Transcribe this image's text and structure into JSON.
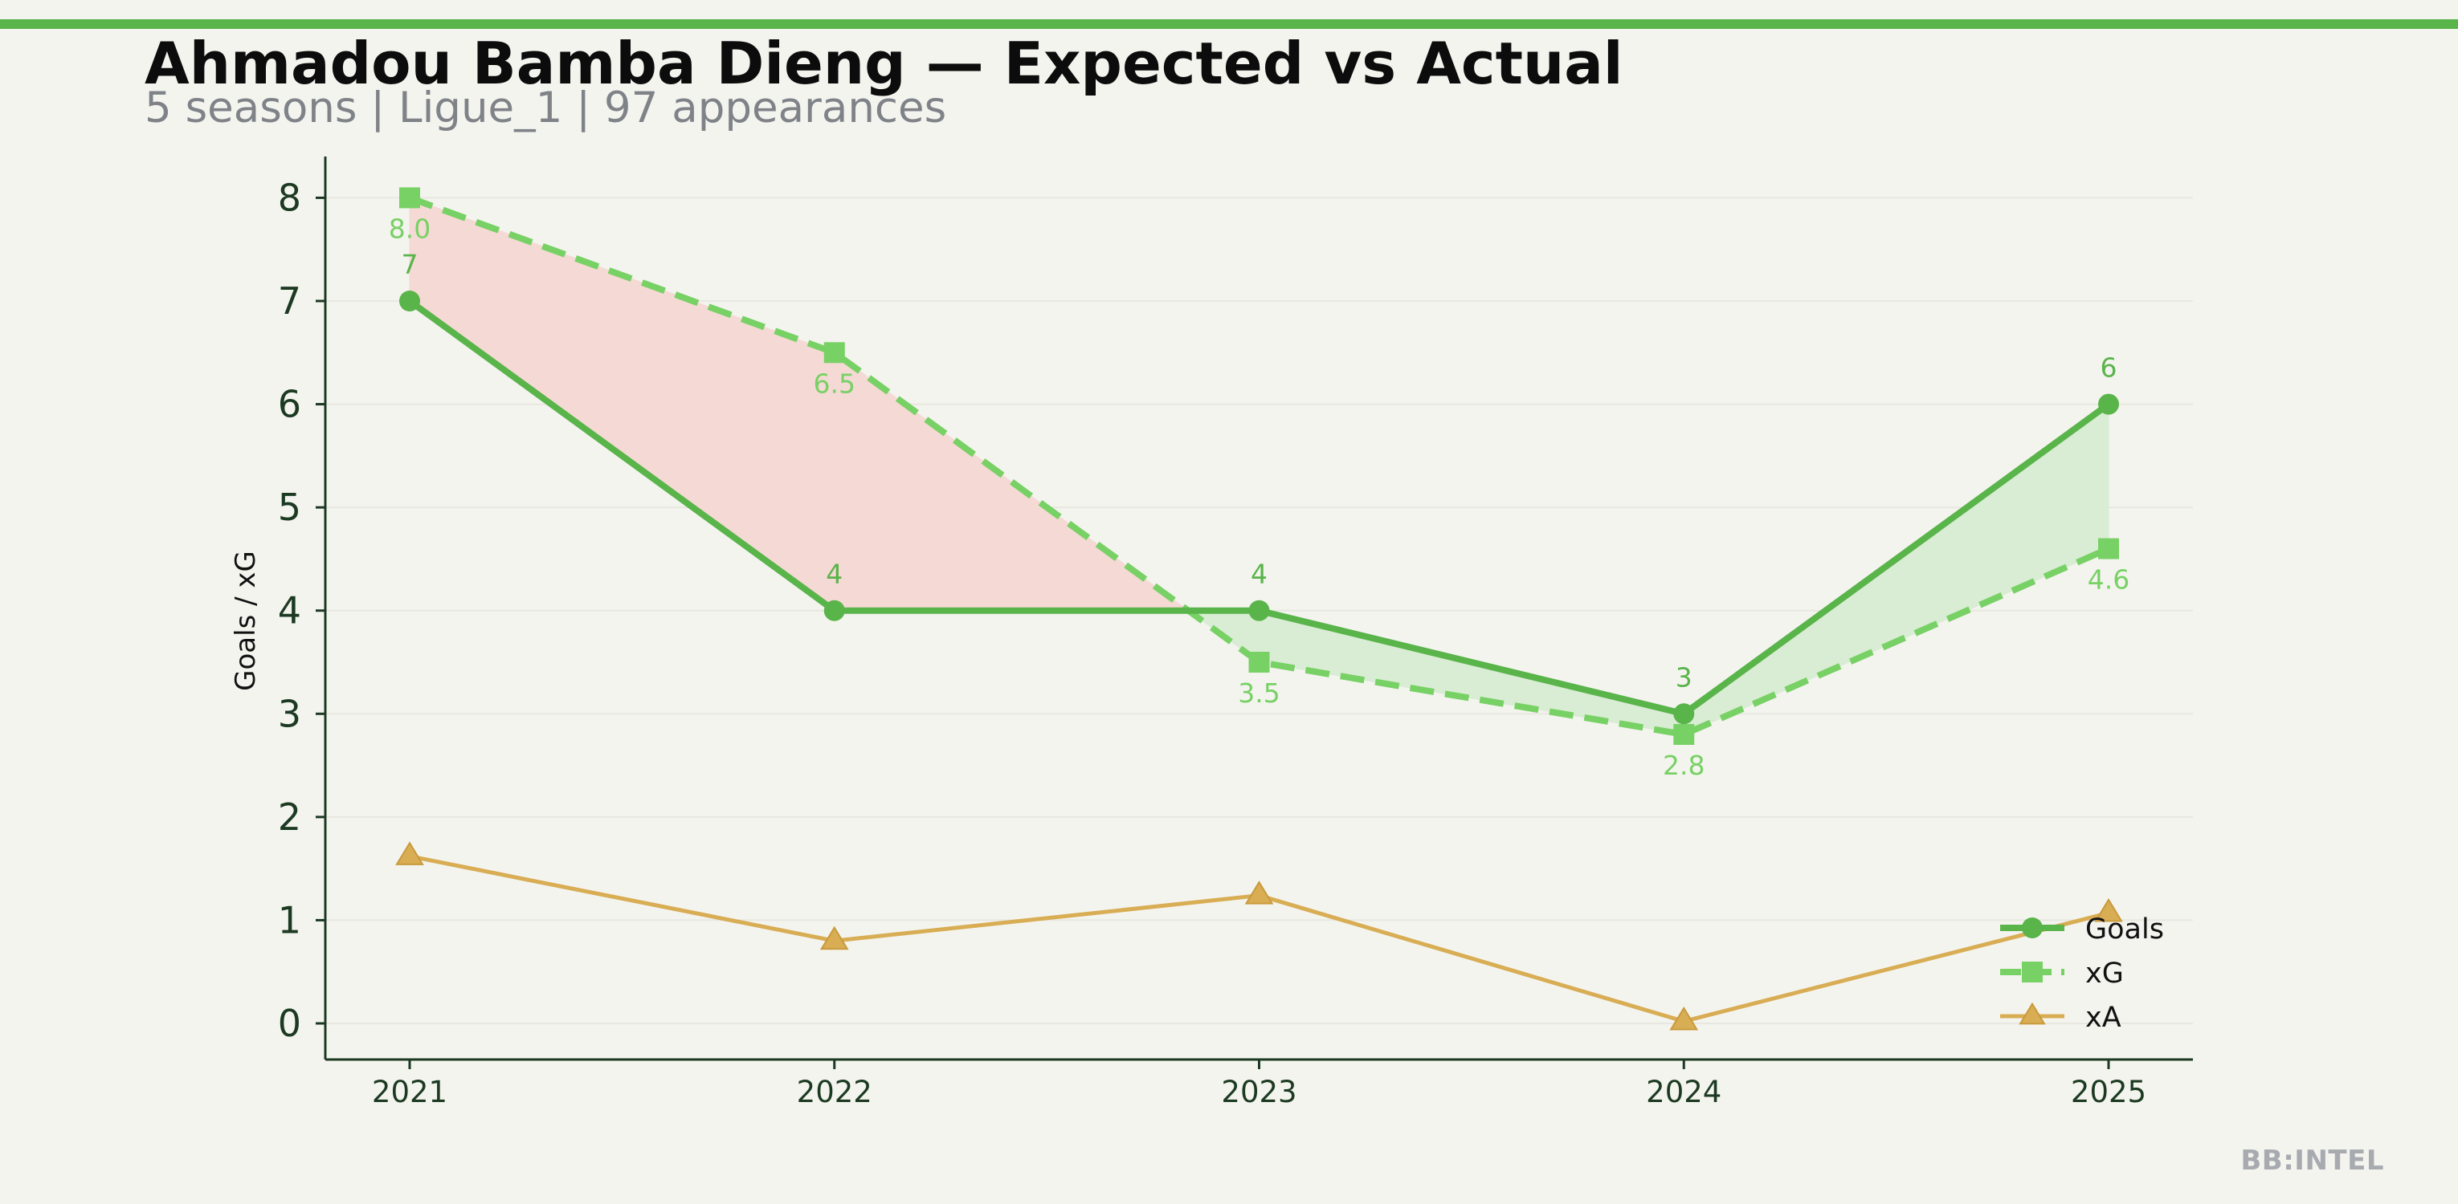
{
  "header": {
    "title": "Ahmadou Bamba Dieng — Expected vs Actual",
    "subtitle": "5 seasons | Ligue_1 | 97 appearances"
  },
  "footer": {
    "watermark": "BB:INTEL"
  },
  "colors": {
    "accent": "#59b44a",
    "goals": "#59b44a",
    "xg": "#78d165",
    "xa": "#d8ad54",
    "underperform_fill": "#f5d9d5",
    "overperform_fill": "#d9ecd4",
    "axis": "#1c3a22",
    "label_text": "#1c3a22"
  },
  "chart_data": {
    "type": "line",
    "categories": [
      "2021",
      "2022",
      "2023",
      "2024",
      "2025"
    ],
    "series": [
      {
        "name": "Goals",
        "values": [
          7,
          4,
          4,
          3,
          6
        ],
        "labels": [
          "7",
          "4",
          "4",
          "3",
          "6"
        ],
        "marker": "circle",
        "line_style": "solid"
      },
      {
        "name": "xG",
        "values": [
          8.0,
          6.5,
          3.5,
          2.8,
          4.6
        ],
        "labels": [
          "8.0",
          "6.5",
          "3.5",
          "2.8",
          "4.6"
        ],
        "marker": "square",
        "line_style": "dashed"
      },
      {
        "name": "xA",
        "values": [
          1.62,
          0.8,
          1.24,
          0.02,
          1.07
        ],
        "marker": "triangle",
        "line_style": "solid"
      }
    ],
    "ylabel": "Goals / xG",
    "xlabel": "",
    "ylim": [
      -0.35,
      8.4
    ],
    "yticks": [
      0,
      1,
      2,
      3,
      4,
      5,
      6,
      7,
      8
    ],
    "grid": "horizontal",
    "legend_position": "bottom-right",
    "fill_between": "Goals vs xG"
  }
}
